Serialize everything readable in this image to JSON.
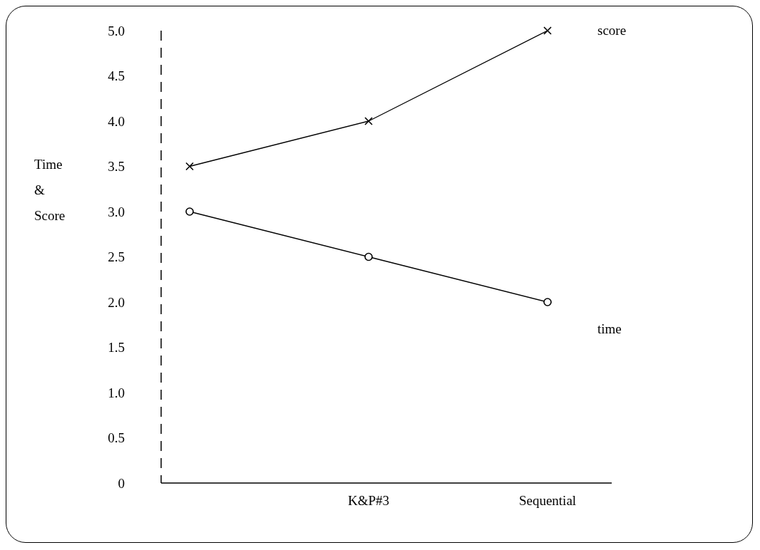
{
  "chart_data": {
    "type": "line",
    "ylabel": "Time\n&\nScore",
    "categories": [
      null,
      "K&P#3",
      "Sequential"
    ],
    "series": [
      {
        "name": "score",
        "color": "#000000",
        "marker": "cross",
        "values": [
          3.5,
          4.0,
          5.0
        ]
      },
      {
        "name": "time",
        "color": "#000000",
        "marker": "circle",
        "values": [
          3.0,
          2.5,
          2.0
        ]
      }
    ],
    "ylim": [
      0,
      5
    ],
    "yticks": [
      0,
      0.5,
      {
        "value": 1,
        "label": "1.0"
      },
      1.5,
      {
        "value": 2,
        "label": "2.0"
      },
      2.5,
      {
        "value": 3,
        "label": "3.0"
      },
      3.5,
      {
        "value": 4,
        "label": "4.0"
      },
      4.5,
      {
        "value": 5,
        "label": "5.0"
      }
    ],
    "grid": false,
    "legend": false,
    "line_style": "solid"
  }
}
